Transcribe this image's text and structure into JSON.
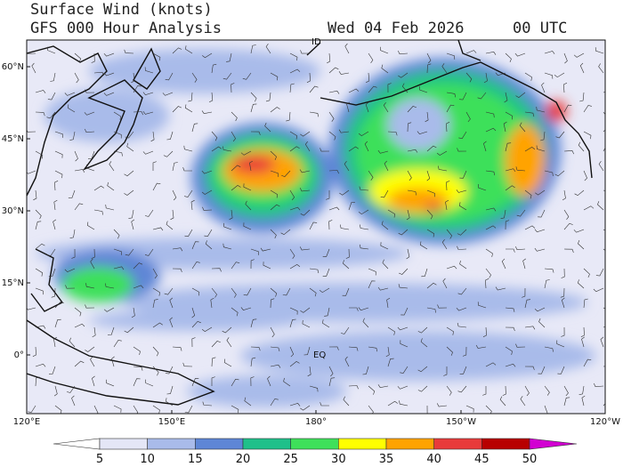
{
  "header": {
    "title": "Surface Wind (knots)",
    "model": "GFS 000 Hour Analysis",
    "date": "Wed 04 Feb 2026",
    "time": "00 UTC"
  },
  "map": {
    "lat_labels": [
      "60°N",
      "45°N",
      "30°N",
      "15°N",
      "0°"
    ],
    "lon_labels": [
      "120°E",
      "150°E",
      "180°",
      "150°W",
      "120°W"
    ],
    "markers": [
      "ID",
      "EQ"
    ]
  },
  "colorbar": {
    "ticks": [
      5,
      10,
      15,
      20,
      25,
      30,
      35,
      40,
      45,
      50
    ],
    "colors": [
      "#ffffff",
      "#e4e6f6",
      "#a9bbea",
      "#5e86d6",
      "#1fc08a",
      "#3ee05a",
      "#ffff00",
      "#ffa300",
      "#e83a3a",
      "#b80000",
      "#d200d2"
    ]
  }
}
